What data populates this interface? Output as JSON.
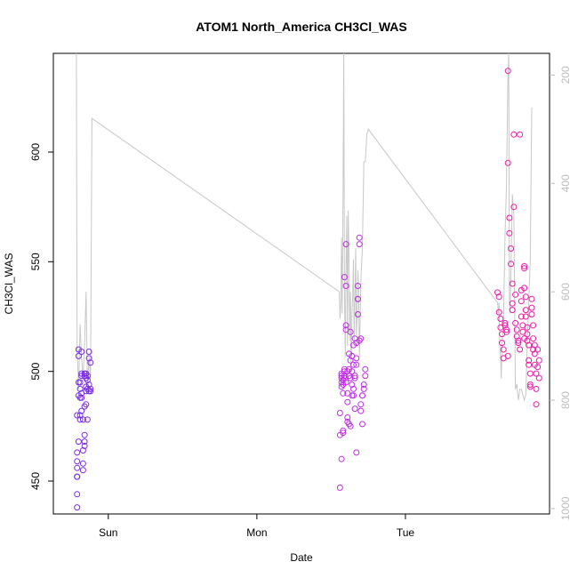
{
  "chart_data": {
    "type": "scatter",
    "title": "ATOM1 North_America CH3Cl_WAS",
    "xlabel": "Date",
    "ylabel": "CH3Cl_WAS",
    "x_ticks": [
      "Sun",
      "Mon",
      "Tue"
    ],
    "x_tick_days": [
      1.0,
      2.0,
      3.0
    ],
    "xlim": [
      0.63,
      3.97
    ],
    "ylim": [
      435,
      645
    ],
    "y_ticks": [
      450,
      500,
      550,
      600
    ],
    "y2_ticks": [
      200,
      400,
      600,
      800,
      1000
    ],
    "y2lim": [
      1010,
      160
    ],
    "y2_reversed": true,
    "grid": false,
    "legend": "none",
    "colors": {
      "early_points": "#7b2bea",
      "mid_points": "#c02de6",
      "late_points": "#ee1aa8",
      "line": "#c8c8c8",
      "right_axis": "#bdbdbd"
    },
    "series": [
      {
        "role": "points",
        "cluster": "first",
        "color": "#7b2bea",
        "x": [
          0.79,
          0.79,
          0.79,
          0.79,
          0.79,
          0.79,
          0.79,
          0.79,
          0.8,
          0.8,
          0.8,
          0.8,
          0.8,
          0.81,
          0.81,
          0.81,
          0.81,
          0.81,
          0.82,
          0.82,
          0.82,
          0.82,
          0.82,
          0.82,
          0.83,
          0.83,
          0.83,
          0.83,
          0.84,
          0.84,
          0.84,
          0.84,
          0.84,
          0.84,
          0.85,
          0.85,
          0.85,
          0.85,
          0.85,
          0.86,
          0.86,
          0.86,
          0.86,
          0.87,
          0.87,
          0.87,
          0.87,
          0.88,
          0.88,
          0.88
        ],
        "y": [
          438,
          444,
          452,
          452,
          456,
          459,
          463,
          480,
          489,
          495,
          510,
          507,
          468,
          480,
          478,
          488,
          492,
          495,
          488,
          490,
          498,
          499,
          509,
          482,
          478,
          464,
          458,
          455,
          468,
          466,
          471,
          484,
          498,
          499,
          497,
          491,
          493,
          485,
          499,
          498,
          478,
          492,
          496,
          509,
          491,
          494,
          506,
          504,
          491,
          492
        ]
      },
      {
        "role": "points",
        "cluster": "second",
        "color": "#c02de6",
        "x": [
          2.56,
          2.56,
          2.56,
          2.57,
          2.57,
          2.57,
          2.57,
          2.57,
          2.57,
          2.58,
          2.58,
          2.58,
          2.58,
          2.58,
          2.59,
          2.59,
          2.59,
          2.59,
          2.59,
          2.6,
          2.6,
          2.6,
          2.6,
          2.6,
          2.61,
          2.61,
          2.61,
          2.61,
          2.61,
          2.62,
          2.62,
          2.62,
          2.62,
          2.63,
          2.63,
          2.63,
          2.63,
          2.64,
          2.64,
          2.64,
          2.64,
          2.65,
          2.65,
          2.65,
          2.65,
          2.66,
          2.66,
          2.66,
          2.66,
          2.67,
          2.67,
          2.67,
          2.67,
          2.68,
          2.68,
          2.68,
          2.68,
          2.69,
          2.69,
          2.69,
          2.7,
          2.7,
          2.7,
          2.71,
          2.71,
          2.71,
          2.72,
          2.72,
          2.73,
          2.73
        ],
        "y": [
          447,
          471,
          481,
          493,
          497,
          498,
          499,
          495,
          460,
          472,
          473,
          490,
          494,
          496,
          497,
          498,
          500,
          501,
          543,
          539,
          521,
          558,
          519,
          495,
          490,
          486,
          479,
          477,
          500,
          476,
          508,
          498,
          501,
          475,
          497,
          518,
          505,
          500,
          494,
          489,
          507,
          503,
          489,
          492,
          512,
          497,
          515,
          498,
          483,
          463,
          503,
          513,
          506,
          526,
          533,
          533,
          539,
          558,
          561,
          514,
          515,
          485,
          482,
          489,
          476,
          489,
          492,
          494,
          498,
          501
        ]
      },
      {
        "role": "points",
        "cluster": "third",
        "color": "#ee1aa8",
        "x": [
          3.62,
          3.63,
          3.63,
          3.64,
          3.64,
          3.65,
          3.65,
          3.66,
          3.66,
          3.67,
          3.67,
          3.68,
          3.68,
          3.69,
          3.69,
          3.69,
          3.7,
          3.7,
          3.71,
          3.71,
          3.72,
          3.72,
          3.72,
          3.73,
          3.73,
          3.74,
          3.74,
          3.75,
          3.75,
          3.76,
          3.76,
          3.77,
          3.77,
          3.78,
          3.78,
          3.78,
          3.79,
          3.79,
          3.8,
          3.8,
          3.8,
          3.8,
          3.81,
          3.81,
          3.81,
          3.82,
          3.82,
          3.82,
          3.83,
          3.83,
          3.83,
          3.84,
          3.84,
          3.84,
          3.85,
          3.85,
          3.85,
          3.86,
          3.86,
          3.86,
          3.87,
          3.87,
          3.87,
          3.88,
          3.88,
          3.88,
          3.89,
          3.89,
          3.9,
          3.9
        ],
        "y": [
          536,
          534,
          527,
          524,
          520,
          517,
          513,
          510,
          506,
          522,
          521,
          519,
          518,
          507,
          637,
          595,
          570,
          563,
          556,
          549,
          540,
          531,
          528,
          608,
          575,
          535,
          522,
          519,
          516,
          514,
          513,
          510,
          608,
          537,
          532,
          525,
          521,
          518,
          515,
          548,
          547,
          538,
          534,
          528,
          525,
          520,
          517,
          514,
          512,
          505,
          503,
          499,
          494,
          493,
          533,
          529,
          526,
          521,
          515,
          510,
          503,
          508,
          512,
          499,
          492,
          485,
          502,
          510,
          505,
          497
        ]
      },
      {
        "role": "line",
        "axis": "right",
        "color": "#c8c8c8",
        "x": [
          0.785,
          0.79,
          0.8,
          0.81,
          0.82,
          0.83,
          0.84,
          0.85,
          0.86,
          0.87,
          0.88,
          0.89,
          2.555,
          2.56,
          2.565,
          2.57,
          2.575,
          2.58,
          2.585,
          2.59,
          2.595,
          2.6,
          2.605,
          2.61,
          2.615,
          2.62,
          2.625,
          2.63,
          2.635,
          2.64,
          2.645,
          2.65,
          2.655,
          2.66,
          2.665,
          2.67,
          2.675,
          2.68,
          2.685,
          2.69,
          2.7,
          2.71,
          2.72,
          2.73,
          2.74,
          2.75,
          3.62,
          3.625,
          3.63,
          3.635,
          3.64,
          3.645,
          3.65,
          3.66,
          3.67,
          3.68,
          3.69,
          3.695,
          3.7,
          3.705,
          3.71,
          3.72,
          3.73,
          3.74,
          3.75,
          3.76,
          3.77,
          3.78,
          3.79,
          3.8,
          3.81,
          3.82,
          3.83,
          3.84,
          3.85
        ],
        "y": [
          160,
          700,
          780,
          660,
          720,
          760,
          700,
          600,
          780,
          720,
          760,
          280,
          600,
          650,
          620,
          500,
          640,
          420,
          160,
          600,
          720,
          560,
          460,
          700,
          450,
          540,
          690,
          600,
          760,
          640,
          610,
          540,
          690,
          620,
          520,
          680,
          650,
          560,
          600,
          720,
          580,
          520,
          360,
          360,
          310,
          300,
          620,
          640,
          620,
          700,
          720,
          760,
          700,
          660,
          500,
          400,
          200,
          160,
          620,
          640,
          560,
          420,
          460,
          780,
          770,
          800,
          780,
          780,
          790,
          800,
          790,
          700,
          620,
          540,
          260
        ]
      }
    ]
  }
}
